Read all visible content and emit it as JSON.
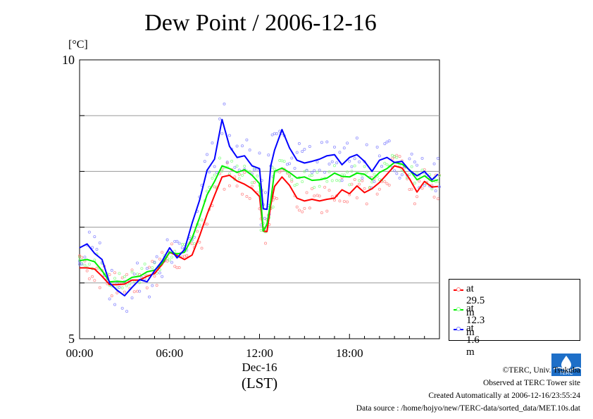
{
  "chart_data": {
    "type": "line",
    "title": "Dew Point / 2006-12-16",
    "unit_label": "[°C]",
    "ylim": [
      5,
      10
    ],
    "y_tick_labels": [
      "5",
      "10"
    ],
    "y_gridlines": [
      6,
      7,
      8,
      9
    ],
    "xlim_hours": [
      0,
      24
    ],
    "x_tick_labels": [
      "00:00",
      "06:00",
      "12:00",
      "18:00"
    ],
    "x_date_label": "Dec-16",
    "x_timezone_label": "(LST)",
    "grid": true,
    "legend_position": "bottom-right",
    "series": [
      {
        "name": "at 29.5 m",
        "color": "#ff0000",
        "point_color": "#ff8080",
        "x": [
          0,
          0.5,
          1,
          1.5,
          2,
          2.5,
          3,
          3.5,
          4,
          4.5,
          5,
          5.5,
          6,
          6.5,
          7,
          7.5,
          8,
          8.5,
          9,
          9.5,
          10,
          10.5,
          11,
          11.5,
          12,
          12.25,
          12.5,
          12.75,
          13,
          13.5,
          14,
          14.5,
          15,
          15.5,
          16,
          16.5,
          17,
          17.5,
          18,
          18.5,
          19,
          19.5,
          20,
          20.5,
          21,
          21.5,
          22,
          22.5,
          23,
          23.5,
          23.9
        ],
        "values": [
          6.27,
          6.27,
          6.25,
          6.12,
          5.97,
          5.97,
          5.98,
          6.05,
          6.05,
          6.12,
          6.17,
          6.33,
          6.55,
          6.49,
          6.42,
          6.5,
          6.84,
          7.23,
          7.57,
          7.9,
          7.93,
          7.83,
          7.77,
          7.69,
          7.55,
          6.93,
          6.92,
          7.4,
          7.73,
          7.9,
          7.75,
          7.52,
          7.47,
          7.5,
          7.47,
          7.5,
          7.52,
          7.67,
          7.6,
          7.74,
          7.62,
          7.69,
          7.8,
          7.95,
          8.1,
          8.06,
          7.87,
          7.63,
          7.82,
          7.72,
          7.73
        ]
      },
      {
        "name": "at 12.3 m",
        "color": "#00ee00",
        "point_color": "#80ff80",
        "x": [
          0,
          0.5,
          1,
          1.5,
          2,
          2.5,
          3,
          3.5,
          4,
          4.5,
          5,
          5.5,
          6,
          6.5,
          7,
          7.5,
          8,
          8.5,
          9,
          9.5,
          10,
          10.5,
          11,
          11.5,
          12,
          12.25,
          12.5,
          12.75,
          13,
          13.5,
          14,
          14.5,
          15,
          15.5,
          16,
          16.5,
          17,
          17.5,
          18,
          18.5,
          19,
          19.5,
          20,
          20.5,
          21,
          21.5,
          22,
          22.5,
          23,
          23.5,
          23.9
        ],
        "values": [
          6.4,
          6.42,
          6.38,
          6.22,
          6.02,
          6.03,
          6.02,
          6.1,
          6.12,
          6.2,
          6.23,
          6.35,
          6.55,
          6.52,
          6.55,
          6.8,
          7.17,
          7.58,
          7.82,
          8.1,
          8.05,
          7.98,
          8.03,
          7.93,
          7.78,
          6.93,
          7.05,
          7.48,
          8.0,
          8.06,
          7.98,
          7.88,
          7.9,
          7.84,
          7.85,
          7.88,
          7.97,
          7.91,
          7.9,
          7.97,
          7.95,
          7.85,
          7.98,
          8.05,
          8.16,
          8.13,
          8.03,
          7.85,
          7.92,
          7.82,
          7.85
        ]
      },
      {
        "name": "at 1.6 m",
        "color": "#0000ff",
        "point_color": "#8080ff",
        "x": [
          0,
          0.5,
          1,
          1.5,
          2,
          2.5,
          3,
          3.5,
          4,
          4.5,
          5,
          5.5,
          6,
          6.5,
          7,
          7.5,
          8,
          8.5,
          9,
          9.5,
          10,
          10.5,
          11,
          11.5,
          12,
          12.25,
          12.5,
          12.75,
          13,
          13.5,
          14,
          14.5,
          15,
          15.5,
          16,
          16.5,
          17,
          17.5,
          18,
          18.5,
          19,
          19.5,
          20,
          20.5,
          21,
          21.5,
          22,
          22.5,
          23,
          23.5,
          23.9
        ],
        "values": [
          6.63,
          6.7,
          6.53,
          6.42,
          6.0,
          5.87,
          5.77,
          5.92,
          6.06,
          6.02,
          6.22,
          6.39,
          6.63,
          6.45,
          6.6,
          7.07,
          7.48,
          8.02,
          8.22,
          8.93,
          8.45,
          8.25,
          8.28,
          8.1,
          8.05,
          7.33,
          7.32,
          8.1,
          8.38,
          8.75,
          8.42,
          8.2,
          8.15,
          8.18,
          8.22,
          8.28,
          8.3,
          8.12,
          8.25,
          8.3,
          8.18,
          8.0,
          8.2,
          8.25,
          8.16,
          8.18,
          8.02,
          7.92,
          8.0,
          7.85,
          7.95
        ]
      }
    ]
  },
  "credits": {
    "copyright": "©TERC, Univ. Tsukuba",
    "observed": "Observed at TERC Tower site",
    "created": "Created Automatically at 2006-12-16/23:55:24",
    "source": "Data source : /home/hojyo/new/TERC-data/sorted_data/MET.10s.dat",
    "logo_text": "TERC"
  }
}
